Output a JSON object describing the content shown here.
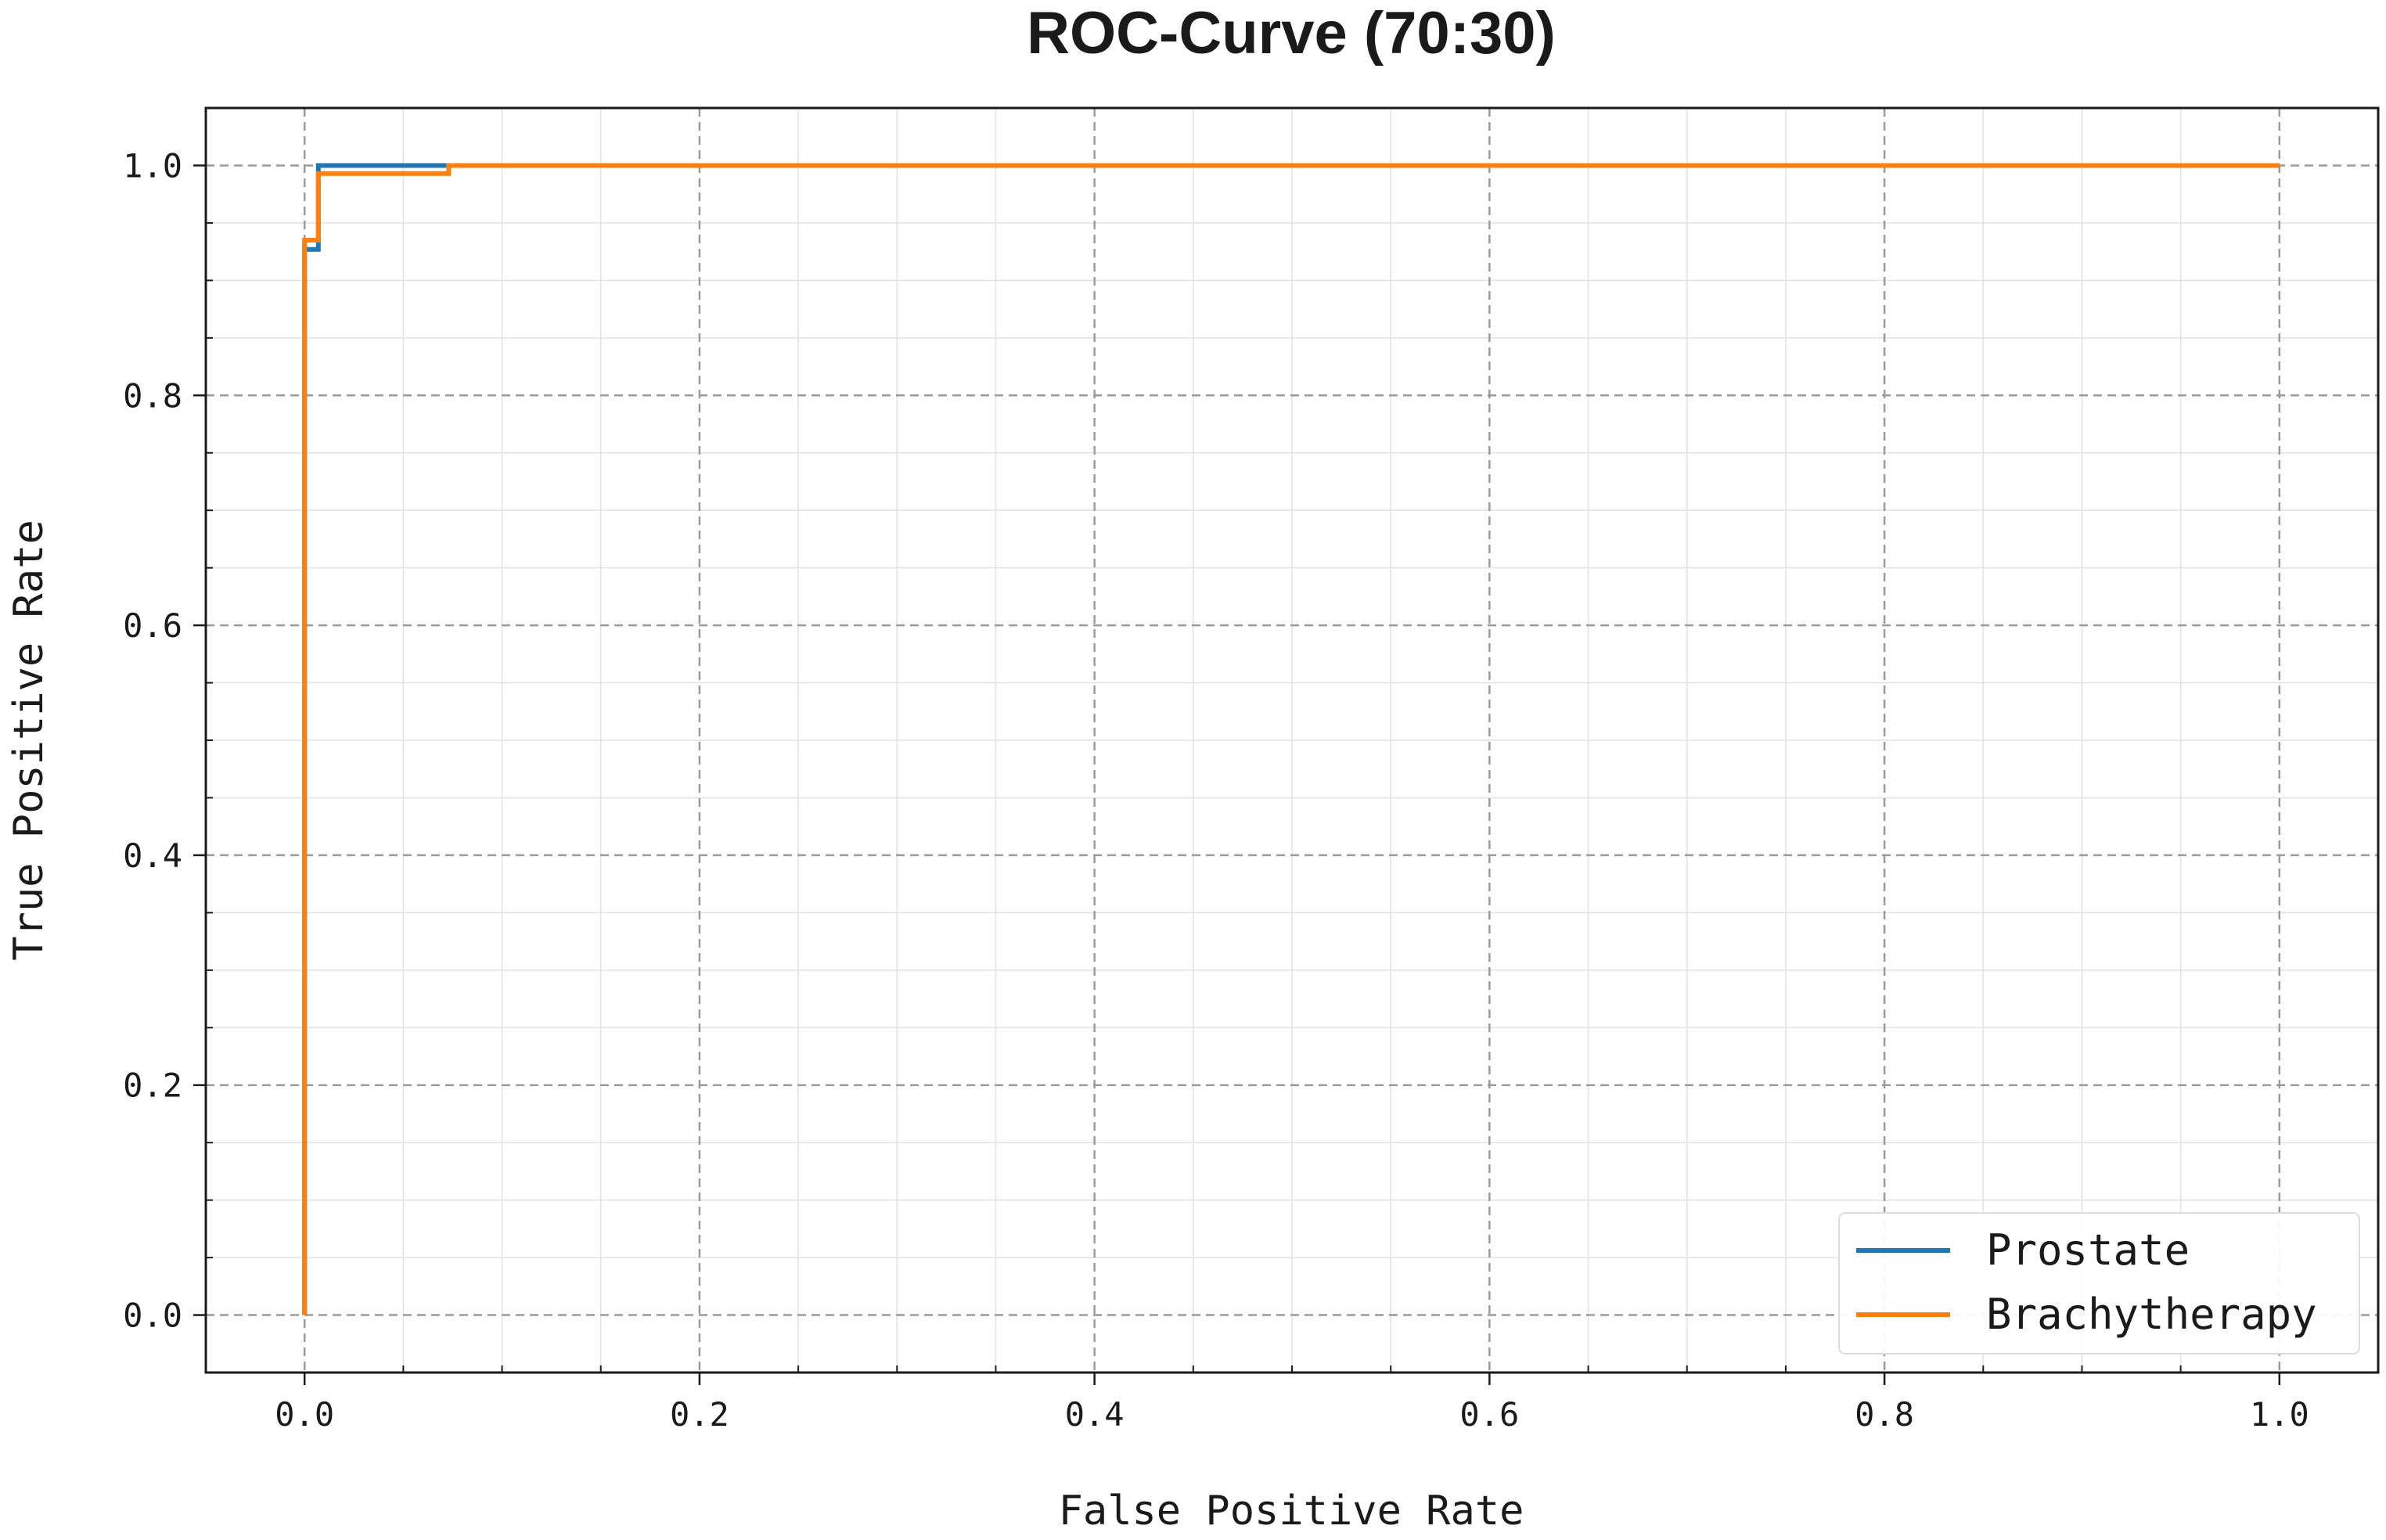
{
  "chart_data": {
    "type": "line",
    "title": "ROC-Curve (70:30)",
    "xlabel": "False Positive Rate",
    "ylabel": "True Positive Rate",
    "xlim": [
      -0.05,
      1.05
    ],
    "ylim": [
      -0.05,
      1.05
    ],
    "x_ticks": [
      0.0,
      0.2,
      0.4,
      0.6,
      0.8,
      1.0
    ],
    "y_ticks": [
      0.0,
      0.2,
      0.4,
      0.6,
      0.8,
      1.0
    ],
    "x_tick_labels": [
      "0.0",
      "0.2",
      "0.4",
      "0.6",
      "0.8",
      "1.0"
    ],
    "y_tick_labels": [
      "0.0",
      "0.2",
      "0.4",
      "0.6",
      "0.8",
      "1.0"
    ],
    "grid": true,
    "minor_grid": true,
    "legend_position": "lower-right",
    "series": [
      {
        "name": "Prostate",
        "color": "#1f77b4",
        "x": [
          0.0,
          0.0,
          0.0,
          0.007,
          0.007,
          0.065,
          0.065,
          1.0
        ],
        "y": [
          0.0,
          0.932,
          0.927,
          0.927,
          1.0,
          1.0,
          1.0,
          1.0
        ]
      },
      {
        "name": "Brachytherapy",
        "color": "#ff7f0e",
        "x": [
          0.0,
          0.0,
          0.007,
          0.007,
          0.073,
          0.073,
          1.0
        ],
        "y": [
          0.0,
          0.935,
          0.935,
          0.993,
          0.993,
          1.0,
          1.0
        ]
      }
    ]
  }
}
